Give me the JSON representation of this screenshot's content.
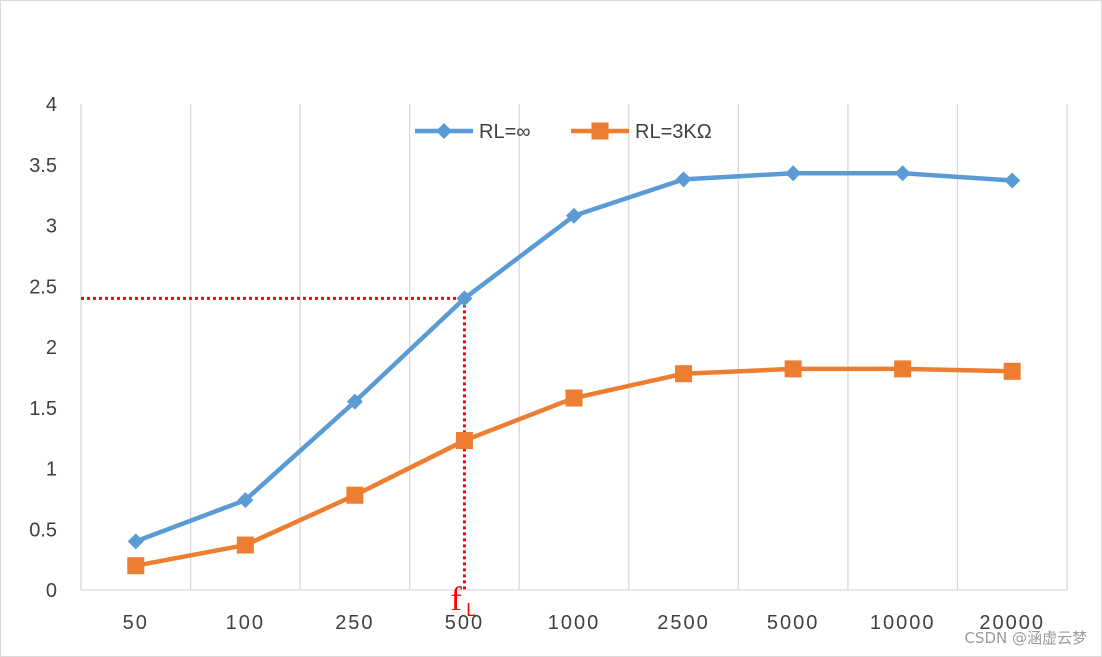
{
  "chart_data": {
    "type": "line",
    "categories": [
      "50",
      "100",
      "250",
      "500",
      "1000",
      "2500",
      "5000",
      "10000",
      "20000"
    ],
    "series": [
      {
        "name": "RL=∞",
        "color": "#5b9bd5",
        "marker": "diamond",
        "values": [
          0.4,
          0.74,
          1.55,
          2.4,
          3.08,
          3.38,
          3.43,
          3.43,
          3.37
        ]
      },
      {
        "name": "RL=3KΩ",
        "color": "#ed7d31",
        "marker": "square",
        "values": [
          0.2,
          0.37,
          0.78,
          1.23,
          1.58,
          1.78,
          1.82,
          1.82,
          1.8
        ]
      }
    ],
    "yticks": [
      "0",
      "0.5",
      "1",
      "1.5",
      "2",
      "2.5",
      "3",
      "3.5",
      "4"
    ],
    "ylim": [
      0,
      4
    ],
    "grid": "vertical",
    "legend": "top",
    "annotation": {
      "label_main": "f",
      "label_sub": "L",
      "category": "500",
      "value": 2.4,
      "color": "#ff0000",
      "style": "dotted"
    }
  },
  "watermark": "CSDN @涵虚云梦"
}
